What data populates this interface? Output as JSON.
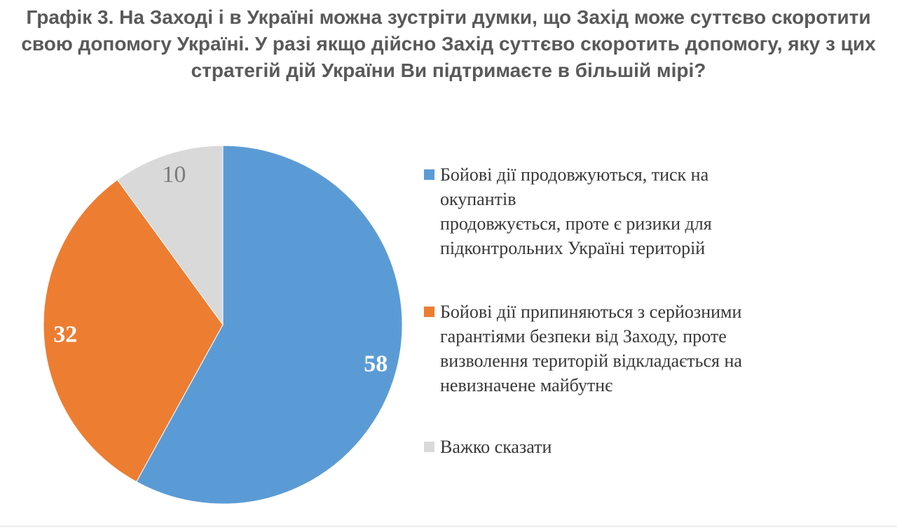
{
  "title": "Графік 3. На Заході і в Україні можна зустріти думки, що Захід може суттєво скоротити свою допомогу Україні. У разі якщо дійсно Захід суттєво скоротить допомогу, яку з цих стратегій дій України Ви підтримаєте в більшій мірі?",
  "chart_data": {
    "type": "pie",
    "title": "Графік 3. На Заході і в Україні можна зустріти думки, що Захід може суттєво скоротити свою допомогу Україні. У разі якщо дійсно Захід суттєво скоротить допомогу, яку з цих стратегій дій України Ви підтримаєте в більшій мірі?",
    "total": 100,
    "start_angle_deg": 0,
    "direction": "clockwise",
    "data_labels": "values",
    "label_radius_fraction": 0.88,
    "legend_position": "right",
    "slices": [
      {
        "label": "Бойові дії продовжуються, тиск на окупантів продовжується, проте є ризики для підконтрольних Україні територій",
        "value": 58,
        "color": "#5B9BD5",
        "label_color": "#FFFFFF",
        "label_bold": true
      },
      {
        "label": "Бойові дії припиняються з серйозними гарантіями безпеки від Заходу, проте визволення територій відкладається на невизначене майбутнє",
        "value": 32,
        "color": "#ED7D31",
        "label_color": "#FFFFFF",
        "label_bold": true
      },
      {
        "label": "Важко сказати",
        "value": 10,
        "color": "#D9D9D9",
        "label_color": "#7C7C7C",
        "label_bold": false
      }
    ]
  },
  "legend": {
    "items": [
      {
        "label": "Бойові дії продовжуються, тиск на окупантів\nпродовжується, проте є ризики для\nпідконтрольних Україні територій",
        "color": "#5B9BD5"
      },
      {
        "label": "Бойові дії припиняються з серйозними\nгарантіями безпеки від Заходу, проте\nвизволення територій відкладається на\nневизначене майбутнє",
        "color": "#ED7D31"
      },
      {
        "label": "Важко сказати",
        "color": "#D9D9D9"
      }
    ]
  }
}
